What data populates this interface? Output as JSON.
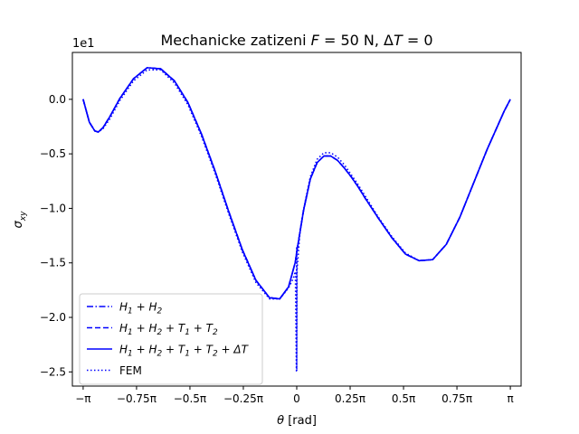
{
  "chart_data": {
    "type": "line",
    "title": "Mechanicke zatizeni F = 50 N, ΔT = 0",
    "title_parts": {
      "prefix": "Mechanicke zatizeni ",
      "F": "F",
      "force": " = 50 N, ",
      "delta": "Δ",
      "T": "T",
      "suffix": " = 0"
    },
    "xlabel": {
      "theta": "θ",
      "unit": " [rad]"
    },
    "ylabel": {
      "sigma": "σ",
      "sub": "xy"
    },
    "y_offset_label": "1e1",
    "xlim": [
      -3.3,
      3.3
    ],
    "ylim": [
      -26.3,
      4.3
    ],
    "xticks": [
      {
        "v": -3.14159,
        "label": "−π"
      },
      {
        "v": -2.35619,
        "label": "−0.75π"
      },
      {
        "v": -1.5708,
        "label": "−0.5π"
      },
      {
        "v": -0.7854,
        "label": "−0.25π"
      },
      {
        "v": 0,
        "label": "0"
      },
      {
        "v": 0.7854,
        "label": "0.25π"
      },
      {
        "v": 1.5708,
        "label": "0.5π"
      },
      {
        "v": 2.35619,
        "label": "0.75π"
      },
      {
        "v": 3.14159,
        "label": "π"
      }
    ],
    "yticks": [
      {
        "v": 0,
        "label": "0.0"
      },
      {
        "v": -5,
        "label": "−0.5"
      },
      {
        "v": -10,
        "label": "−1.0"
      },
      {
        "v": -15,
        "label": "−1.5"
      },
      {
        "v": -20,
        "label": "−2.0"
      },
      {
        "v": -25,
        "label": "−2.5"
      }
    ],
    "grid": false,
    "legend": {
      "placement": "lower-left",
      "entries": [
        {
          "label_parts": [
            "H",
            "1",
            " + H",
            "2"
          ],
          "style": "dashdot"
        },
        {
          "label_parts": [
            "H",
            "1",
            " + H",
            "2",
            " + T",
            "1",
            " + T",
            "2"
          ],
          "style": "dashed"
        },
        {
          "label_parts": [
            "H",
            "1",
            " + H",
            "2",
            " + T",
            "1",
            " + T",
            "2",
            " + ΔT"
          ],
          "style": "solid"
        },
        {
          "label_parts": [
            "FEM"
          ],
          "style": "dotted"
        }
      ]
    },
    "color": "#0000ff",
    "series": [
      {
        "name": "H1 + H2 + T1 + T2 + ΔT",
        "style": "solid",
        "x": [
          -3.14159,
          -3.05,
          -2.97,
          -2.92,
          -2.85,
          -2.75,
          -2.6,
          -2.4,
          -2.2,
          -2.0,
          -1.8,
          -1.6,
          -1.4,
          -1.2,
          -1.0,
          -0.8,
          -0.6,
          -0.4,
          -0.25,
          -0.12,
          -0.05,
          -0.02,
          0.0,
          0.05,
          0.1,
          0.2,
          0.3,
          0.4,
          0.5,
          0.6,
          0.7,
          0.8,
          0.9,
          1.0,
          1.2,
          1.4,
          1.6,
          1.8,
          2.0,
          2.2,
          2.4,
          2.6,
          2.8,
          2.95,
          3.05,
          3.14159
        ],
        "y": [
          0.0,
          -2.1,
          -2.9,
          -3.0,
          -2.6,
          -1.6,
          0.1,
          1.9,
          2.9,
          2.8,
          1.7,
          -0.3,
          -3.2,
          -6.6,
          -10.3,
          -13.8,
          -16.6,
          -18.2,
          -18.3,
          -17.2,
          -15.6,
          -14.9,
          -14.0,
          -12.1,
          -10.2,
          -7.3,
          -5.8,
          -5.2,
          -5.2,
          -5.6,
          -6.3,
          -7.1,
          -8.0,
          -9.0,
          -10.9,
          -12.7,
          -14.2,
          -14.8,
          -14.7,
          -13.3,
          -10.8,
          -7.7,
          -4.6,
          -2.5,
          -1.1,
          0.0
        ]
      },
      {
        "name": "H1 + H2",
        "style": "dashdot",
        "x": [
          -3.14159,
          -3.05,
          -2.97,
          -2.92,
          -2.85,
          -2.75,
          -2.6,
          -2.4,
          -2.2,
          -2.0,
          -1.8,
          -1.6,
          -1.4,
          -1.2,
          -1.0,
          -0.8,
          -0.6,
          -0.4,
          -0.25,
          -0.12,
          -0.05,
          -0.02,
          0.0,
          0.05,
          0.1,
          0.2,
          0.3,
          0.4,
          0.5,
          0.6,
          0.7,
          0.8,
          0.9,
          1.0,
          1.2,
          1.4,
          1.6,
          1.8,
          2.0,
          2.2,
          2.4,
          2.6,
          2.8,
          2.95,
          3.05,
          3.14159
        ],
        "y": [
          0.0,
          -2.1,
          -2.9,
          -3.0,
          -2.6,
          -1.6,
          0.1,
          1.9,
          2.9,
          2.8,
          1.7,
          -0.3,
          -3.2,
          -6.6,
          -10.3,
          -13.8,
          -16.6,
          -18.2,
          -18.3,
          -17.2,
          -15.6,
          -14.9,
          -14.0,
          -12.1,
          -10.2,
          -7.3,
          -5.8,
          -5.2,
          -5.2,
          -5.6,
          -6.3,
          -7.1,
          -8.0,
          -9.0,
          -10.9,
          -12.7,
          -14.2,
          -14.8,
          -14.7,
          -13.3,
          -10.8,
          -7.7,
          -4.6,
          -2.5,
          -1.1,
          0.0
        ]
      },
      {
        "name": "H1 + H2 + T1 + T2",
        "style": "dashed",
        "x": [
          -3.14159,
          -3.05,
          -2.97,
          -2.92,
          -2.85,
          -2.75,
          -2.6,
          -2.4,
          -2.2,
          -2.0,
          -1.8,
          -1.6,
          -1.4,
          -1.2,
          -1.0,
          -0.8,
          -0.6,
          -0.4,
          -0.25,
          -0.12,
          -0.05,
          -0.02,
          0.0,
          0.05,
          0.1,
          0.2,
          0.3,
          0.4,
          0.5,
          0.6,
          0.7,
          0.8,
          0.9,
          1.0,
          1.2,
          1.4,
          1.6,
          1.8,
          2.0,
          2.2,
          2.4,
          2.6,
          2.8,
          2.95,
          3.05,
          3.14159
        ],
        "y": [
          0.0,
          -2.1,
          -2.9,
          -3.0,
          -2.6,
          -1.6,
          0.1,
          1.9,
          2.9,
          2.8,
          1.7,
          -0.3,
          -3.2,
          -6.6,
          -10.3,
          -13.8,
          -16.6,
          -18.2,
          -18.3,
          -17.2,
          -15.6,
          -14.9,
          -14.0,
          -12.1,
          -10.2,
          -7.3,
          -5.8,
          -5.2,
          -5.2,
          -5.6,
          -6.3,
          -7.1,
          -8.0,
          -9.0,
          -10.9,
          -12.7,
          -14.2,
          -14.8,
          -14.7,
          -13.3,
          -10.8,
          -7.7,
          -4.6,
          -2.5,
          -1.1,
          0.0
        ]
      },
      {
        "name": "FEM",
        "style": "dotted",
        "x": [
          -3.14159,
          -3.05,
          -2.97,
          -2.92,
          -2.85,
          -2.75,
          -2.6,
          -2.4,
          -2.2,
          -2.0,
          -1.8,
          -1.6,
          -1.4,
          -1.2,
          -1.0,
          -0.8,
          -0.6,
          -0.4,
          -0.25,
          -0.12,
          -0.05,
          -0.02,
          -0.005,
          0.0,
          0.0,
          0.005,
          0.05,
          0.1,
          0.2,
          0.3,
          0.4,
          0.5,
          0.6,
          0.7,
          0.8,
          0.9,
          1.0,
          1.2,
          1.4,
          1.6,
          1.8,
          2.0,
          2.2,
          2.4,
          2.6,
          2.8,
          2.95,
          3.05,
          3.14159
        ],
        "y": [
          0.0,
          -2.1,
          -2.9,
          -3.0,
          -2.7,
          -1.8,
          -0.1,
          1.7,
          2.7,
          2.7,
          1.5,
          -0.5,
          -3.4,
          -6.8,
          -10.5,
          -14.0,
          -16.8,
          -18.3,
          -18.3,
          -17.3,
          -16.4,
          -15.8,
          -24.9,
          -13.5,
          -24.9,
          -15.6,
          -12.0,
          -10.1,
          -7.1,
          -5.5,
          -4.9,
          -4.9,
          -5.3,
          -6.0,
          -6.9,
          -7.8,
          -8.8,
          -10.8,
          -12.6,
          -14.1,
          -14.8,
          -14.7,
          -13.3,
          -10.8,
          -7.7,
          -4.6,
          -2.5,
          -1.1,
          0.0
        ]
      }
    ]
  }
}
